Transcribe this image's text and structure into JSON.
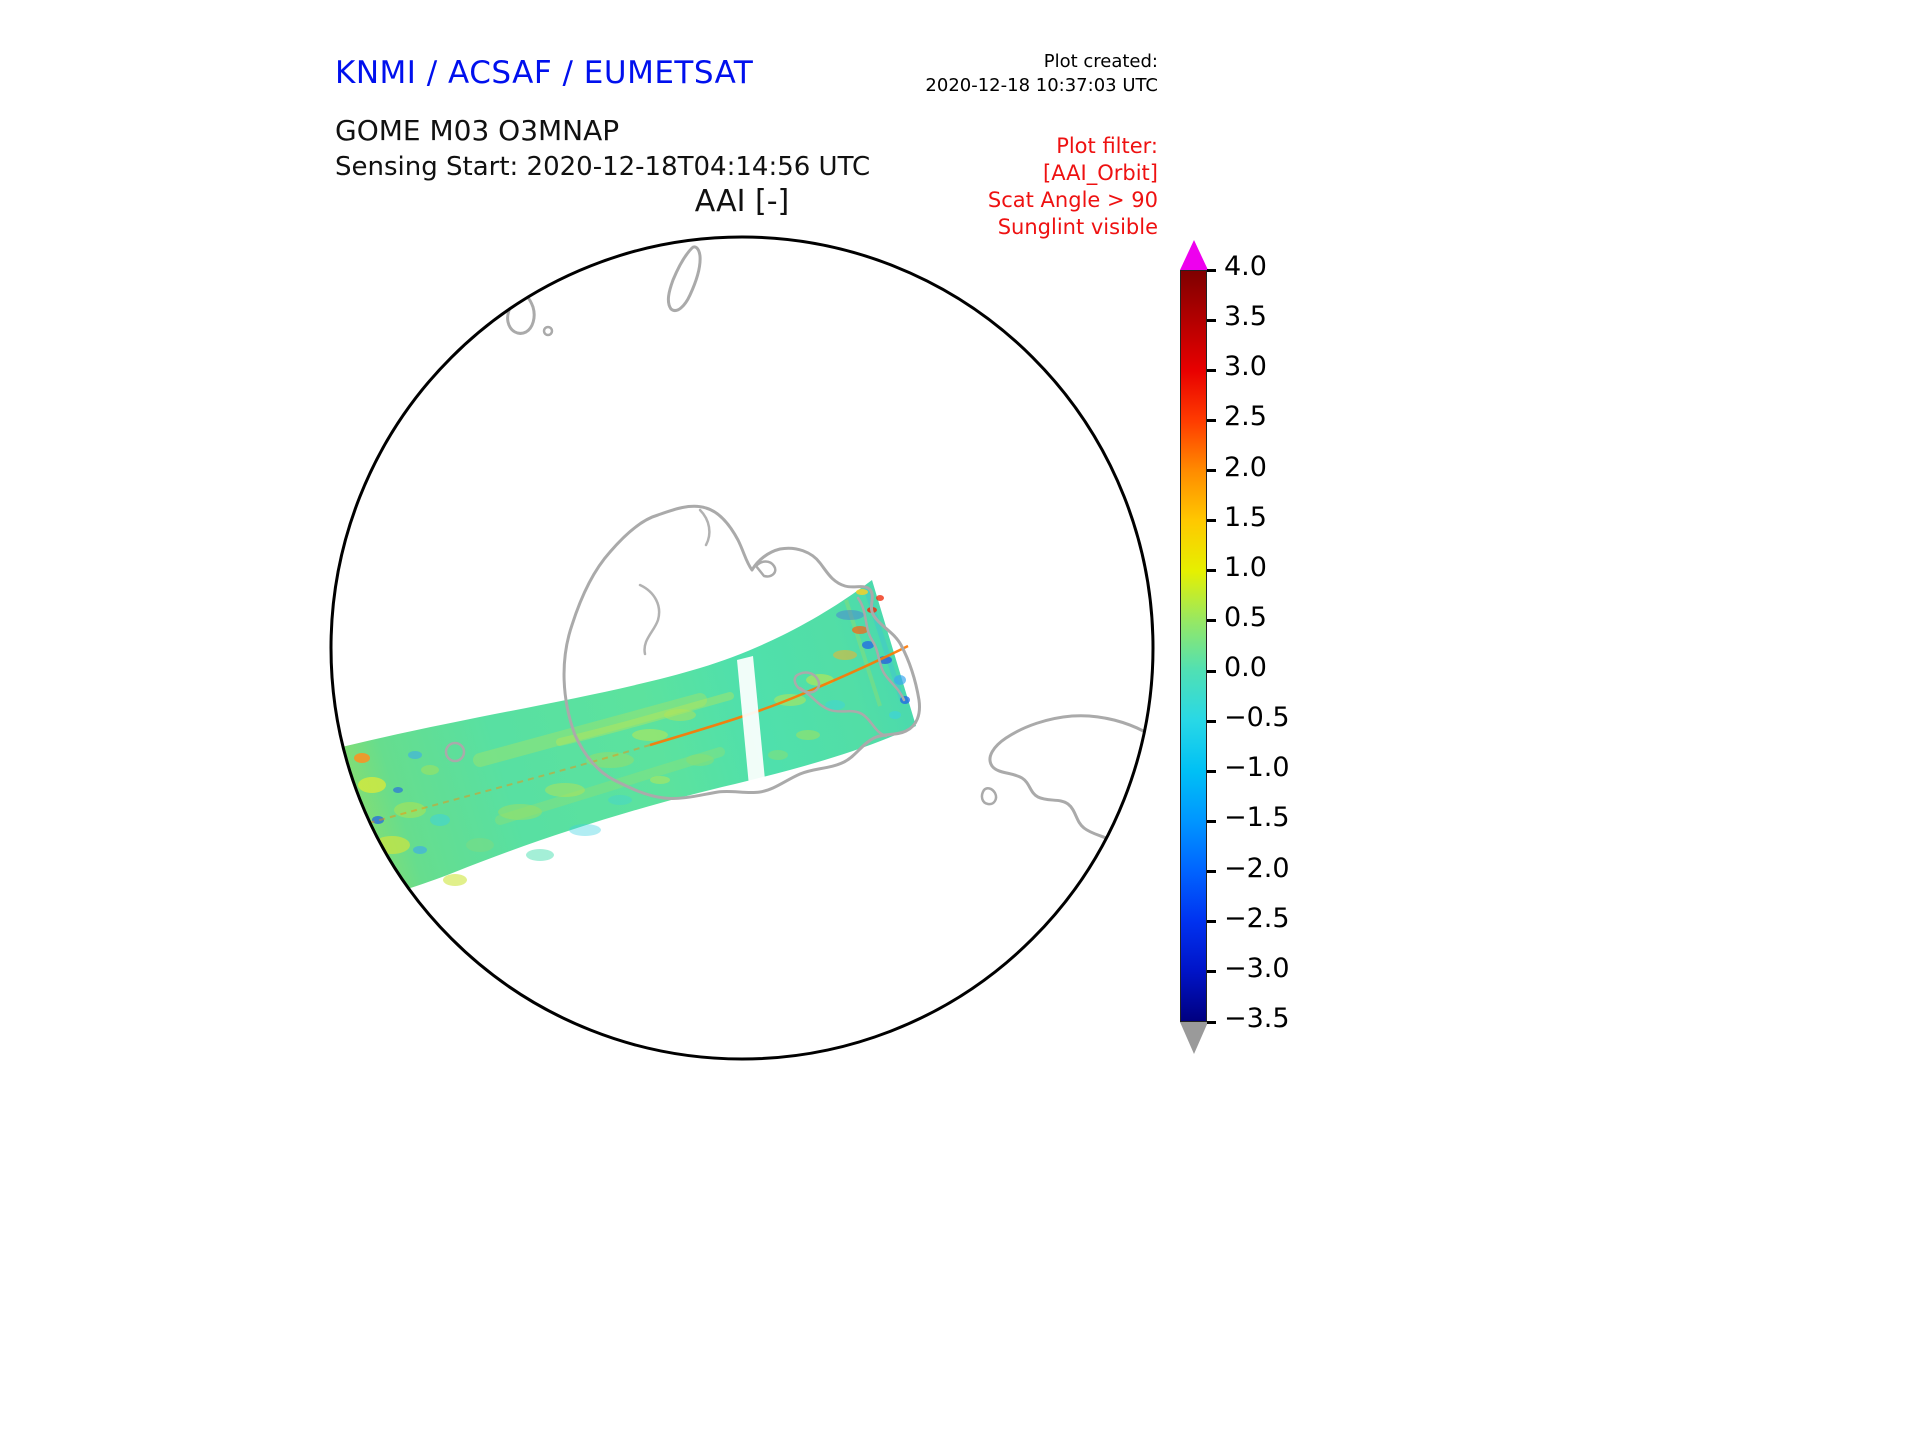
{
  "header": {
    "agency_title": "KNMI / ACSAF / EUMETSAT",
    "plot_created_label": "Plot created:",
    "plot_created_value": "2020-12-18 10:37:03 UTC"
  },
  "product": {
    "line1": "GOME M03 O3MNAP",
    "line2": "Sensing Start: 2020-12-18T04:14:56 UTC"
  },
  "plot_filter": {
    "title": "Plot filter:",
    "lines": [
      "[AAI_Orbit]",
      "Scat Angle > 90",
      "Sunglint visible"
    ]
  },
  "colors": {
    "agency_title_blue": "#0010ee",
    "filter_red": "#ee1111",
    "coastline_gray": "#aaaaaa",
    "map_outline_black": "#000000"
  },
  "chart_data": {
    "type": "heatmap",
    "title": "AAI [-]",
    "projection": "polar stereographic (circular map with gray coastlines)",
    "swath_note": "Single satellite swath crossing the map from lower-left to mid-right; values mostly near 0 (green/cyan) with yellow patches around 0.5-1 and isolated blue/red pixels; thin orange orbit track line; narrow white data gap near the middle of the swath",
    "colorbar": {
      "range": [
        -3.5,
        4.0
      ],
      "tick_values": [
        4.0,
        3.5,
        3.0,
        2.5,
        2.0,
        1.5,
        1.0,
        0.5,
        0.0,
        -0.5,
        -1.0,
        -1.5,
        -2.0,
        -2.5,
        -3.0,
        -3.5
      ],
      "tick_labels": [
        "4.0",
        "3.5",
        "3.0",
        "2.5",
        "2.0",
        "1.5",
        "1.0",
        "0.5",
        "0.0",
        "−0.5",
        "−1.0",
        "−1.5",
        "−2.0",
        "−2.5",
        "−3.0",
        "−3.5"
      ],
      "over_arrow_color": "#ee00ee",
      "under_arrow_color": "#9a9a9a",
      "stops": [
        {
          "value": 4.0,
          "color": "#7f0000"
        },
        {
          "value": 3.5,
          "color": "#b40000"
        },
        {
          "value": 3.0,
          "color": "#e80000"
        },
        {
          "value": 2.5,
          "color": "#ff3c00"
        },
        {
          "value": 2.0,
          "color": "#ff8c00"
        },
        {
          "value": 1.5,
          "color": "#ffc800"
        },
        {
          "value": 1.0,
          "color": "#e6f000"
        },
        {
          "value": 0.5,
          "color": "#96e864"
        },
        {
          "value": 0.0,
          "color": "#50e0b4"
        },
        {
          "value": -0.5,
          "color": "#28d8e6"
        },
        {
          "value": -1.0,
          "color": "#00c0f5"
        },
        {
          "value": -1.5,
          "color": "#0096ff"
        },
        {
          "value": -2.0,
          "color": "#0064ff"
        },
        {
          "value": -2.5,
          "color": "#0032f0"
        },
        {
          "value": -3.0,
          "color": "#0014c8"
        },
        {
          "value": -3.5,
          "color": "#000080"
        }
      ]
    }
  }
}
